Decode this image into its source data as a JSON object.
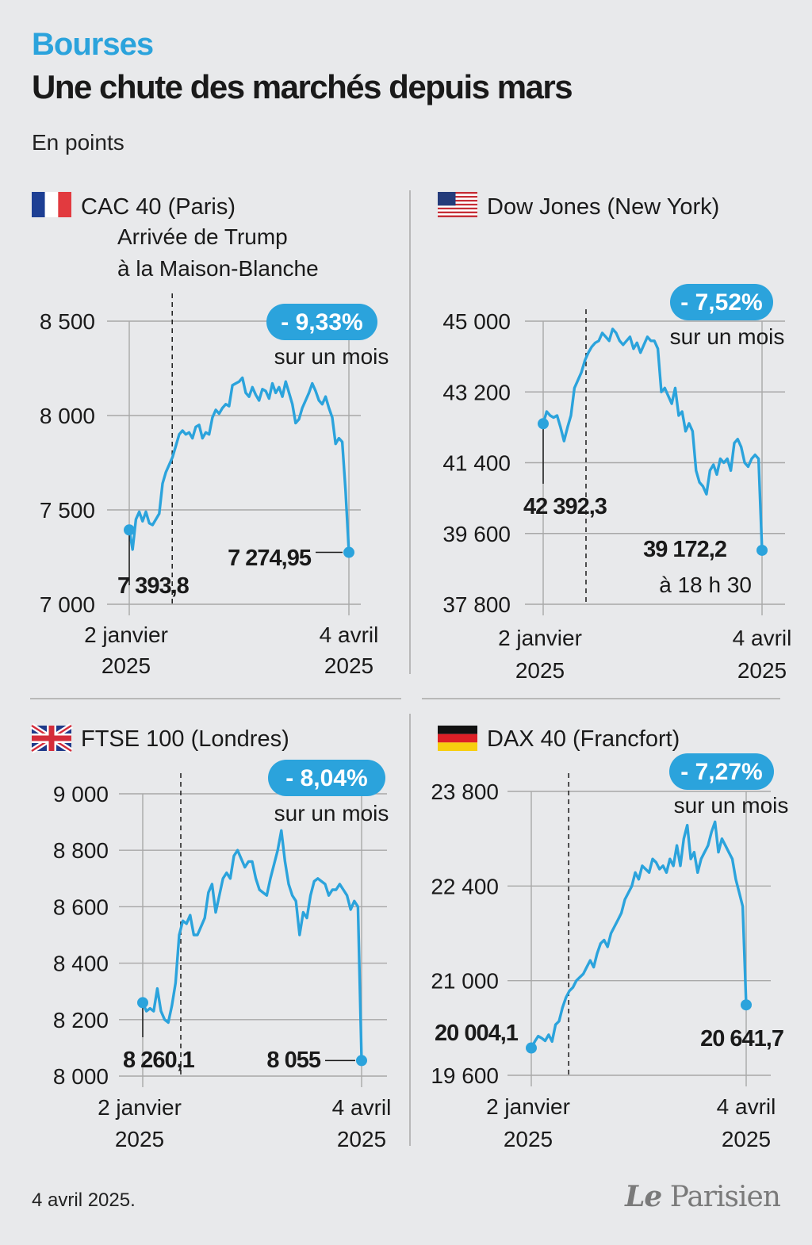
{
  "header": {
    "kicker": "Bourses",
    "title": "Une chute des marchés depuis mars",
    "unit": "En points"
  },
  "footer": {
    "date": "4 avril 2025.",
    "logo": "Le Parisien"
  },
  "colors": {
    "accent": "#2ba3dc",
    "text": "#1a1a1a",
    "grid": "#a8a8a8",
    "background": "#e8e9eb"
  },
  "chart_data": [
    {
      "type": "line",
      "title": "CAC 40 (Paris)",
      "flag": "france",
      "badge": "- 9,33%",
      "badge_sub": "sur un mois",
      "annotation": "Arrivée de Trump à la Maison-Blanche",
      "annotation_lines": [
        "Arrivée de Trump",
        "à la Maison-Blanche"
      ],
      "xlabel_start": [
        "2 janvier",
        "2025"
      ],
      "xlabel_end": [
        "4 avril",
        "2025"
      ],
      "yticks": [
        7000,
        7500,
        8000,
        8500
      ],
      "ytick_labels": [
        "7 000",
        "7 500",
        "8 000",
        "8 500"
      ],
      "ylim": [
        7000,
        8500
      ],
      "start_label": "7 393,8",
      "end_label": "7 274,95",
      "start_value": 7393.8,
      "end_value": 7274.95,
      "x_days": 92,
      "marker_day": 18,
      "values": [
        7393.8,
        7290,
        7450,
        7490,
        7440,
        7490,
        7430,
        7420,
        7450,
        7480,
        7640,
        7700,
        7740,
        7780,
        7840,
        7900,
        7920,
        7900,
        7910,
        7880,
        7940,
        7950,
        7880,
        7910,
        7900,
        7990,
        8030,
        8010,
        8040,
        8060,
        8050,
        8160,
        8170,
        8180,
        8200,
        8120,
        8100,
        8150,
        8110,
        8080,
        8140,
        8130,
        8090,
        8170,
        8120,
        8150,
        8100,
        8180,
        8120,
        8060,
        7960,
        7980,
        8040,
        8080,
        8120,
        8170,
        8130,
        8080,
        8060,
        8100,
        8040,
        7990,
        7850,
        7880,
        7860,
        7600,
        7274.95
      ]
    },
    {
      "type": "line",
      "title": "Dow Jones (New York)",
      "flag": "usa",
      "badge": "- 7,52%",
      "badge_sub": "sur un mois",
      "xlabel_start": [
        "2 janvier",
        "2025"
      ],
      "xlabel_end": [
        "4 avril",
        "2025"
      ],
      "yticks": [
        37800,
        39600,
        41400,
        43200,
        45000
      ],
      "ytick_labels": [
        "37 800",
        "39 600",
        "41 400",
        "43 200",
        "45 000"
      ],
      "ylim": [
        37800,
        45000
      ],
      "start_label": "42 392,3",
      "end_label": "39 172,2",
      "end_sublabel": "à 18 h 30",
      "start_value": 42392.3,
      "end_value": 39172.2,
      "x_days": 92,
      "marker_day": 18,
      "values": [
        42392.3,
        42700,
        42600,
        42550,
        42600,
        42300,
        41950,
        42300,
        42600,
        43300,
        43500,
        43700,
        44000,
        44200,
        44350,
        44450,
        44500,
        44700,
        44600,
        44500,
        44800,
        44700,
        44500,
        44400,
        44500,
        44600,
        44300,
        44450,
        44200,
        44400,
        44600,
        44500,
        44500,
        44300,
        43200,
        43300,
        43100,
        42900,
        43300,
        42600,
        42700,
        42200,
        42400,
        42200,
        41200,
        40900,
        40800,
        40600,
        41200,
        41350,
        41100,
        41500,
        41400,
        41500,
        41200,
        41900,
        42000,
        41800,
        41400,
        41300,
        41500,
        41600,
        41500,
        39172.2
      ]
    },
    {
      "type": "line",
      "title": "FTSE 100 (Londres)",
      "flag": "uk",
      "badge": "- 8,04%",
      "badge_sub": "sur un mois",
      "xlabel_start": [
        "2 janvier",
        "2025"
      ],
      "xlabel_end": [
        "4 avril",
        "2025"
      ],
      "yticks": [
        8000,
        8200,
        8400,
        8600,
        8800,
        9000
      ],
      "ytick_labels": [
        "8 000",
        "8 200",
        "8 400",
        "8 600",
        "8 800",
        "9 000"
      ],
      "ylim": [
        8000,
        9000
      ],
      "start_label": "8 260,1",
      "end_label": "8 055",
      "start_value": 8260.1,
      "end_value": 8055,
      "x_days": 92,
      "marker_day": 16,
      "values": [
        8260.1,
        8230,
        8240,
        8230,
        8310,
        8230,
        8200,
        8190,
        8250,
        8330,
        8500,
        8550,
        8540,
        8570,
        8500,
        8500,
        8530,
        8560,
        8650,
        8680,
        8580,
        8640,
        8700,
        8720,
        8700,
        8780,
        8800,
        8770,
        8740,
        8760,
        8760,
        8700,
        8660,
        8650,
        8640,
        8700,
        8750,
        8800,
        8870,
        8760,
        8680,
        8640,
        8620,
        8500,
        8580,
        8560,
        8640,
        8690,
        8700,
        8690,
        8680,
        8640,
        8660,
        8660,
        8680,
        8660,
        8640,
        8590,
        8620,
        8600,
        8055
      ]
    },
    {
      "type": "line",
      "title": "DAX 40 (Francfort)",
      "flag": "germany",
      "badge": "- 7,27%",
      "badge_sub": "sur un mois",
      "xlabel_start": [
        "2 janvier",
        "2025"
      ],
      "xlabel_end": [
        "4 avril",
        "2025"
      ],
      "yticks": [
        19600,
        21000,
        22400,
        23800
      ],
      "ytick_labels": [
        "19 600",
        "21 000",
        "22 400",
        "23 800"
      ],
      "ylim": [
        19600,
        23800
      ],
      "start_label": "20 004,1",
      "end_label": "20 641,7",
      "start_value": 20004.1,
      "end_value": 20641.7,
      "x_days": 92,
      "marker_day": 16,
      "values": [
        20004.1,
        20100,
        20180,
        20150,
        20110,
        20200,
        20100,
        20350,
        20400,
        20600,
        20750,
        20850,
        20900,
        21000,
        21050,
        21100,
        21200,
        21300,
        21200,
        21400,
        21550,
        21600,
        21500,
        21700,
        21800,
        21900,
        22000,
        22200,
        22300,
        22400,
        22600,
        22500,
        22700,
        22650,
        22600,
        22800,
        22750,
        22650,
        22700,
        22600,
        22800,
        22700,
        23000,
        22700,
        23100,
        23300,
        22800,
        22900,
        22600,
        22800,
        22900,
        23000,
        23200,
        23350,
        22900,
        23100,
        23000,
        22900,
        22800,
        22500,
        22300,
        22100,
        20641.7
      ]
    }
  ]
}
